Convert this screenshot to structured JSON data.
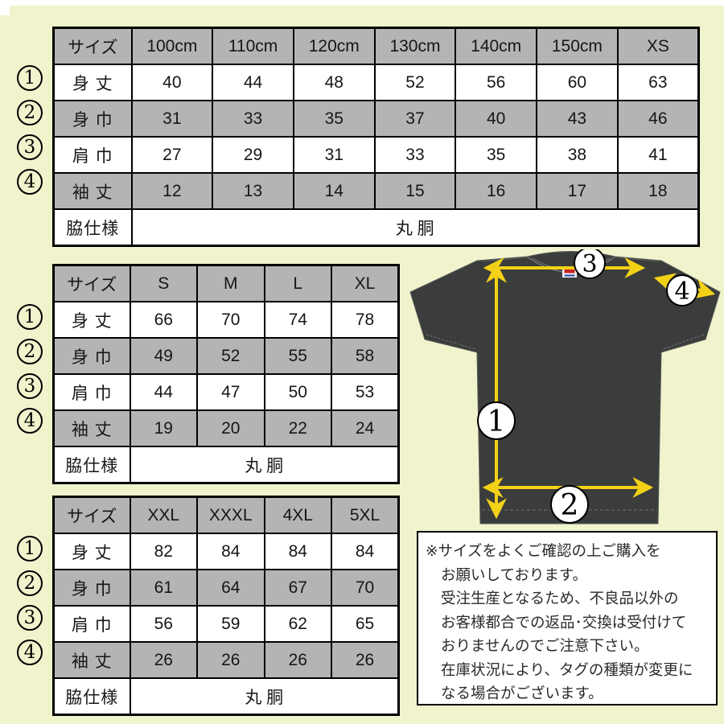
{
  "colors": {
    "background": "#f1f3cd",
    "table_shade_gray": "#b4b4b4",
    "arrow_yellow": "#f2d117",
    "shirt_charcoal": "#3a3d3b",
    "note_background": "#ffffff",
    "border_black": "#000000"
  },
  "measure_nums": [
    "1",
    "2",
    "3",
    "4"
  ],
  "tables": [
    {
      "name": "kids",
      "header": [
        "サイズ",
        "100cm",
        "110cm",
        "120cm",
        "130cm",
        "140cm",
        "150cm",
        "XS"
      ],
      "rows": [
        {
          "label": "身 丈",
          "values": [
            "40",
            "44",
            "48",
            "52",
            "56",
            "60",
            "63"
          ]
        },
        {
          "label": "身 巾",
          "values": [
            "31",
            "33",
            "35",
            "37",
            "40",
            "43",
            "46"
          ]
        },
        {
          "label": "肩 巾",
          "values": [
            "27",
            "29",
            "31",
            "33",
            "35",
            "38",
            "41"
          ]
        },
        {
          "label": "袖 丈",
          "values": [
            "12",
            "13",
            "14",
            "15",
            "16",
            "17",
            "18"
          ]
        }
      ],
      "footer": {
        "label": "脇仕様",
        "value": "丸 胴"
      }
    },
    {
      "name": "adult",
      "header": [
        "サイズ",
        "S",
        "M",
        "L",
        "XL"
      ],
      "rows": [
        {
          "label": "身 丈",
          "values": [
            "66",
            "70",
            "74",
            "78"
          ]
        },
        {
          "label": "身 巾",
          "values": [
            "49",
            "52",
            "55",
            "58"
          ]
        },
        {
          "label": "肩 巾",
          "values": [
            "44",
            "47",
            "50",
            "53"
          ]
        },
        {
          "label": "袖 丈",
          "values": [
            "19",
            "20",
            "22",
            "24"
          ]
        }
      ],
      "footer": {
        "label": "脇仕様",
        "value": "丸 胴"
      }
    },
    {
      "name": "big",
      "header": [
        "サイズ",
        "XXL",
        "XXXL",
        "4XL",
        "5XL"
      ],
      "rows": [
        {
          "label": "身 丈",
          "values": [
            "82",
            "84",
            "84",
            "84"
          ]
        },
        {
          "label": "身 巾",
          "values": [
            "61",
            "64",
            "67",
            "70"
          ]
        },
        {
          "label": "肩 巾",
          "values": [
            "56",
            "59",
            "62",
            "65"
          ]
        },
        {
          "label": "袖 丈",
          "values": [
            "26",
            "26",
            "26",
            "26"
          ]
        }
      ],
      "footer": {
        "label": "脇仕様",
        "value": "丸 胴"
      }
    }
  ],
  "diagram": {
    "labels": [
      "1",
      "2",
      "3",
      "4"
    ]
  },
  "note": {
    "lines": [
      "※サイズをよくご確認の上ご購入を",
      "お願いしております。",
      "受注生産となるため、不良品以外の",
      "お客様都合での返品･交換は受付けて",
      "おりませんのでご注意下さい。",
      "在庫状況により、タグの種類が変更に",
      "なる場合がございます。"
    ]
  }
}
